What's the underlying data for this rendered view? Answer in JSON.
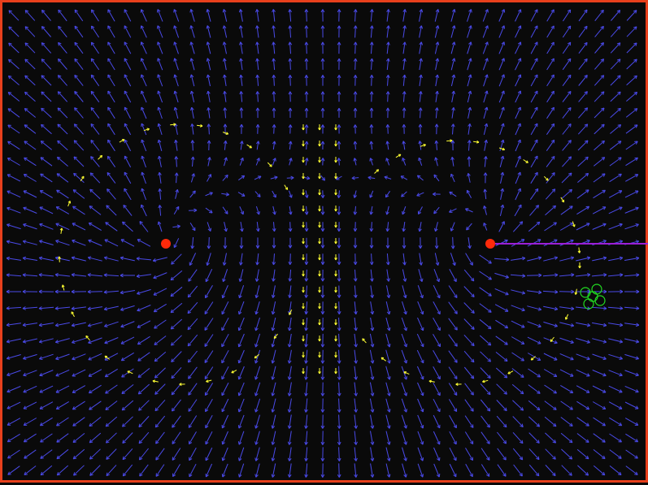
{
  "scene": {
    "background_color": "#0a0a0a",
    "border_color": "#e8401c",
    "vector_color": "#4a4ae8",
    "streamline_color": "#ffff33",
    "charge_color": "#ff2a0a",
    "probe_line_color": "#9b1fd6",
    "particle_color": "#22dd22",
    "charges": [
      {
        "name": "charge-left",
        "sign": "source",
        "strength": 1
      },
      {
        "name": "charge-right",
        "sign": "source",
        "strength": 1
      }
    ],
    "particle_cluster": {
      "count": 5
    },
    "field_lines_visible": true,
    "vector_grid_visible": true
  }
}
